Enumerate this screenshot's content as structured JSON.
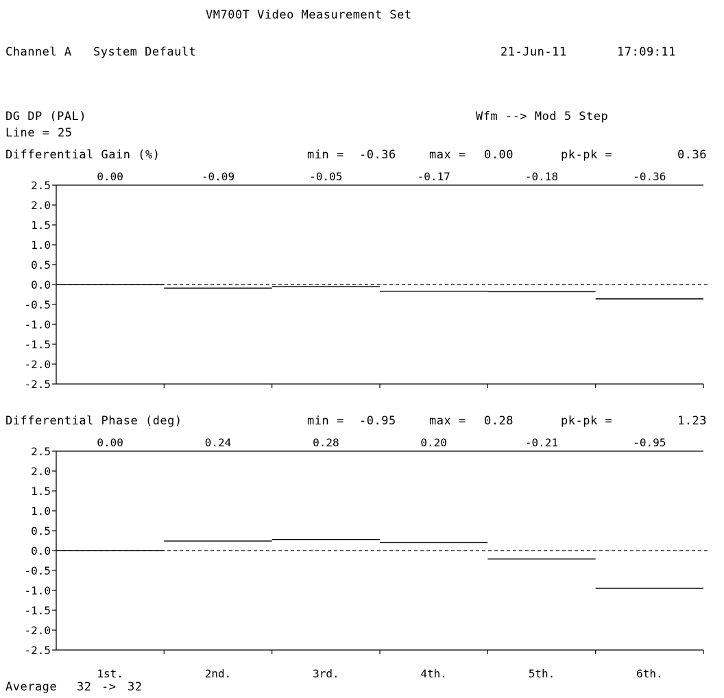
{
  "header": {
    "title": "VM700T Video Measurement Set",
    "channel": "Channel A",
    "setup": "System Default",
    "date": "21-Jun-11",
    "time": "17:09:11"
  },
  "measurement": {
    "name": "DG DP (PAL)",
    "mode": "Wfm --> Mod 5 Step",
    "line_label": "Line =",
    "line_value": "25"
  },
  "footer": {
    "average_label": "Average",
    "average_from": "32",
    "arrow": "->",
    "average_to": "32"
  },
  "chart_data": [
    {
      "type": "line",
      "title": "Differential Gain (%)",
      "stats": {
        "min_label": "min =",
        "min": "-0.36",
        "max_label": "max =",
        "max": "0.00",
        "pkpk_label": "pk-pk =",
        "pkpk": "0.36"
      },
      "categories": [
        "1st.",
        "2nd.",
        "3rd.",
        "4th.",
        "5th.",
        "6th."
      ],
      "values": [
        0.0,
        -0.09,
        -0.05,
        -0.17,
        -0.18,
        -0.36
      ],
      "value_labels": [
        "0.00",
        "-0.09",
        "-0.05",
        "-0.17",
        "-0.18",
        "-0.36"
      ],
      "yticks": [
        "2.5",
        "2.0",
        "1.5",
        "1.0",
        "0.5",
        "0.0",
        "-0.5",
        "-1.0",
        "-1.5",
        "-2.0",
        "-2.5"
      ],
      "ylim": [
        -2.5,
        2.5
      ],
      "reference_line": 0.0
    },
    {
      "type": "line",
      "title": "Differential Phase (deg)",
      "stats": {
        "min_label": "min =",
        "min": "-0.95",
        "max_label": "max =",
        "max": "0.28",
        "pkpk_label": "pk-pk =",
        "pkpk": "1.23"
      },
      "categories": [
        "1st.",
        "2nd.",
        "3rd.",
        "4th.",
        "5th.",
        "6th."
      ],
      "values": [
        0.0,
        0.24,
        0.28,
        0.2,
        -0.21,
        -0.95
      ],
      "value_labels": [
        "0.00",
        "0.24",
        "0.28",
        "0.20",
        "-0.21",
        "-0.95"
      ],
      "yticks": [
        "2.5",
        "2.0",
        "1.5",
        "1.0",
        "0.5",
        "0.0",
        "-0.5",
        "-1.0",
        "-1.5",
        "-2.0",
        "-2.5"
      ],
      "ylim": [
        -2.5,
        2.5
      ],
      "reference_line": 0.0
    }
  ]
}
